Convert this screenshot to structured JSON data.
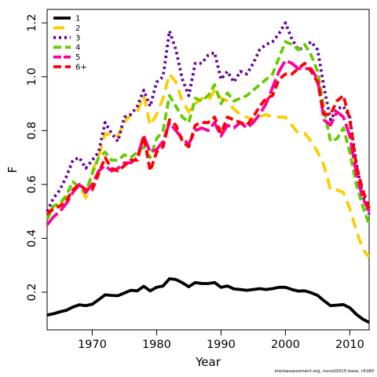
{
  "chart_data": {
    "type": "line",
    "title": "",
    "xlabel": "Year",
    "ylabel": "F",
    "xlim": [
      1963,
      2013
    ],
    "ylim": [
      0.06,
      1.25
    ],
    "x_ticks": [
      1970,
      1980,
      1990,
      2000,
      2010
    ],
    "y_ticks": [
      0.2,
      0.4,
      0.6,
      0.8,
      1.0,
      1.2
    ],
    "grid": false,
    "legend_position": "top-left",
    "x": [
      1963,
      1964,
      1965,
      1966,
      1967,
      1968,
      1969,
      1970,
      1971,
      1972,
      1973,
      1974,
      1975,
      1976,
      1977,
      1978,
      1979,
      1980,
      1981,
      1982,
      1983,
      1984,
      1985,
      1986,
      1987,
      1988,
      1989,
      1990,
      1991,
      1992,
      1993,
      1994,
      1995,
      1996,
      1997,
      1998,
      1999,
      2000,
      2001,
      2002,
      2003,
      2004,
      2005,
      2006,
      2007,
      2008,
      2009,
      2010,
      2011,
      2012,
      2013
    ],
    "series": [
      {
        "name": "1",
        "color": "#000000",
        "dash": "solid",
        "values": [
          0.115,
          0.12,
          0.127,
          0.133,
          0.145,
          0.153,
          0.15,
          0.155,
          0.172,
          0.19,
          0.188,
          0.187,
          0.197,
          0.207,
          0.205,
          0.222,
          0.205,
          0.218,
          0.223,
          0.25,
          0.247,
          0.235,
          0.22,
          0.236,
          0.232,
          0.232,
          0.236,
          0.218,
          0.223,
          0.212,
          0.21,
          0.207,
          0.21,
          0.213,
          0.21,
          0.213,
          0.218,
          0.218,
          0.21,
          0.204,
          0.205,
          0.198,
          0.188,
          0.168,
          0.15,
          0.152,
          0.154,
          0.142,
          0.118,
          0.1,
          0.088
        ]
      },
      {
        "name": "2",
        "color": "#FFCC00",
        "dash": "long",
        "values": [
          0.49,
          0.52,
          0.53,
          0.55,
          0.58,
          0.6,
          0.55,
          0.65,
          0.7,
          0.79,
          0.78,
          0.78,
          0.83,
          0.86,
          0.87,
          0.93,
          0.82,
          0.86,
          0.92,
          1.01,
          0.98,
          0.91,
          0.87,
          0.9,
          0.92,
          0.91,
          0.95,
          0.92,
          0.91,
          0.88,
          0.86,
          0.85,
          0.84,
          0.85,
          0.86,
          0.85,
          0.85,
          0.85,
          0.82,
          0.79,
          0.79,
          0.76,
          0.72,
          0.67,
          0.58,
          0.58,
          0.57,
          0.51,
          0.43,
          0.36,
          0.33
        ]
      },
      {
        "name": "3",
        "color": "#660099",
        "dash": "dotted",
        "values": [
          0.5,
          0.55,
          0.58,
          0.63,
          0.69,
          0.7,
          0.66,
          0.69,
          0.72,
          0.83,
          0.79,
          0.76,
          0.85,
          0.86,
          0.89,
          0.95,
          0.89,
          0.98,
          1.0,
          1.17,
          1.1,
          0.99,
          0.93,
          1.05,
          1.05,
          1.08,
          1.09,
          0.99,
          1.02,
          0.98,
          1.02,
          1.01,
          1.05,
          1.1,
          1.12,
          1.13,
          1.16,
          1.2,
          1.14,
          1.1,
          1.11,
          1.13,
          1.1,
          0.96,
          0.84,
          0.88,
          0.89,
          0.85,
          0.68,
          0.56,
          0.49
        ]
      },
      {
        "name": "4",
        "color": "#66CC00",
        "dash": "dashed",
        "values": [
          0.47,
          0.52,
          0.53,
          0.56,
          0.61,
          0.59,
          0.57,
          0.64,
          0.7,
          0.72,
          0.69,
          0.69,
          0.71,
          0.7,
          0.72,
          0.74,
          0.7,
          0.77,
          0.8,
          0.93,
          0.89,
          0.85,
          0.83,
          0.92,
          0.91,
          0.93,
          0.97,
          0.9,
          0.94,
          0.91,
          0.92,
          0.93,
          0.95,
          0.97,
          0.99,
          1.01,
          1.07,
          1.13,
          1.12,
          1.1,
          1.12,
          1.08,
          1.02,
          0.88,
          0.76,
          0.77,
          0.81,
          0.72,
          0.6,
          0.52,
          0.45
        ]
      },
      {
        "name": "5",
        "color": "#FF0099",
        "dash": "longdash",
        "values": [
          0.45,
          0.48,
          0.5,
          0.53,
          0.57,
          0.6,
          0.57,
          0.6,
          0.65,
          0.67,
          0.65,
          0.66,
          0.68,
          0.68,
          0.7,
          0.78,
          0.72,
          0.73,
          0.76,
          0.83,
          0.8,
          0.77,
          0.75,
          0.8,
          0.81,
          0.8,
          0.83,
          0.78,
          0.82,
          0.81,
          0.83,
          0.81,
          0.83,
          0.86,
          0.9,
          0.96,
          1.02,
          1.06,
          1.05,
          1.03,
          1.03,
          1.03,
          0.99,
          0.84,
          0.82,
          0.87,
          0.85,
          0.78,
          0.64,
          0.55,
          0.5
        ]
      },
      {
        "name": "6+",
        "color": "#FF0000",
        "dash": "dashed",
        "values": [
          0.49,
          0.51,
          0.52,
          0.54,
          0.58,
          0.6,
          0.58,
          0.58,
          0.64,
          0.7,
          0.66,
          0.65,
          0.67,
          0.69,
          0.69,
          0.78,
          0.65,
          0.72,
          0.74,
          0.84,
          0.82,
          0.76,
          0.74,
          0.82,
          0.83,
          0.83,
          0.85,
          0.79,
          0.85,
          0.84,
          0.83,
          0.82,
          0.85,
          0.89,
          0.92,
          0.93,
          0.99,
          1.01,
          1.01,
          1.03,
          1.05,
          1.02,
          0.98,
          0.86,
          0.86,
          0.91,
          0.93,
          0.84,
          0.67,
          0.58,
          0.51
        ]
      }
    ]
  },
  "footer": "stockassessment.org, nscod2015-base, r4180"
}
